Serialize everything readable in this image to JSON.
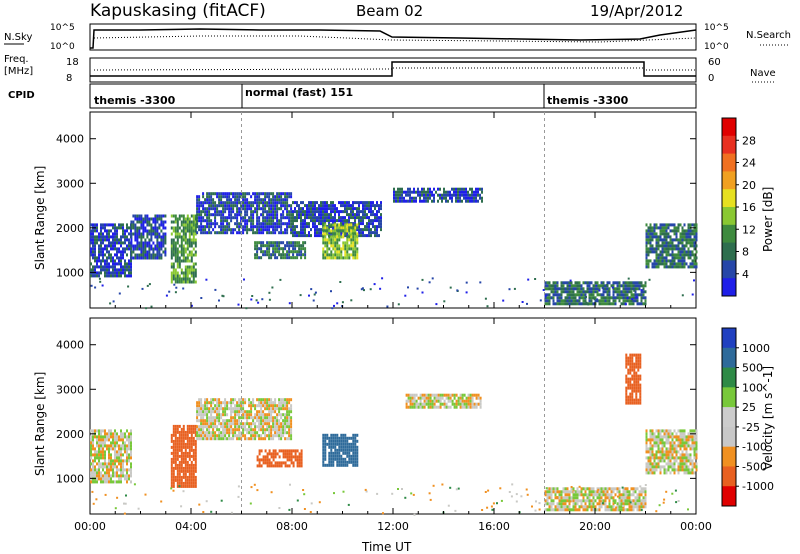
{
  "header": {
    "station": "Kapuskasing (fitACF)",
    "beam": "Beam 02",
    "date": "19/Apr/2012"
  },
  "top_panels": {
    "nsky_label": "N.Sky",
    "nsearch_label": "N.Search",
    "freq_label_1": "Freq.",
    "freq_label_2": "[MHz]",
    "nave_label": "Nave",
    "cpid_label": "CPID",
    "noise_ticks": [
      "10^5",
      "10^0"
    ],
    "freq_ticks": [
      "18",
      "8"
    ],
    "nave_ticks": [
      "60",
      "0"
    ],
    "cpid_segments": [
      {
        "label": "themis -3300",
        "start_h": 0
      },
      {
        "label": "normal (fast) 151",
        "start_h": 6
      },
      {
        "label": "themis -3300",
        "start_h": 18
      }
    ]
  },
  "colors": {
    "power": [
      "#1f1fe8",
      "#2646a8",
      "#2e6e4e",
      "#3e8a3e",
      "#8ac832",
      "#e6e020",
      "#f0a020",
      "#f07020",
      "#e83020",
      "#e00000"
    ],
    "velocity": [
      "#2040c0",
      "#2e6a9a",
      "#2e8a46",
      "#78c83a",
      "#cccccc",
      "#c8c8c8",
      "#f09020",
      "#e86020",
      "#e00000"
    ],
    "vel_gray": "#c9c9c5"
  },
  "chart_data": [
    {
      "type": "heatmap",
      "title": "Power",
      "ylabel": "Slant Range [km]",
      "xlabel": "Time UT",
      "xlim": [
        0,
        24
      ],
      "ylim": [
        200,
        4600
      ],
      "x_ticks": [
        "00:00",
        "04:00",
        "08:00",
        "12:00",
        "16:00",
        "20:00",
        "00:00"
      ],
      "y_ticks": [
        1000,
        2000,
        3000,
        4000
      ],
      "colorbar_label": "Power [dB]",
      "colorbar_ticks": [
        "28",
        "24",
        "20",
        "16",
        "12",
        "8",
        "4"
      ],
      "regions": [
        {
          "t0": 0.0,
          "t1": 1.6,
          "r0": 900,
          "r1": 2100,
          "level": 1
        },
        {
          "t0": 1.6,
          "t1": 3.0,
          "r0": 1300,
          "r1": 2300,
          "level": 1
        },
        {
          "t0": 3.2,
          "t1": 4.2,
          "r0": 800,
          "r1": 2300,
          "level": 3
        },
        {
          "t0": 4.2,
          "t1": 8.0,
          "r0": 1900,
          "r1": 2800,
          "level": 1
        },
        {
          "t0": 6.5,
          "t1": 8.5,
          "r0": 1300,
          "r1": 1700,
          "level": 2
        },
        {
          "t0": 8.0,
          "t1": 11.5,
          "r0": 1800,
          "r1": 2600,
          "level": 1
        },
        {
          "t0": 9.2,
          "t1": 10.6,
          "r0": 1300,
          "r1": 2100,
          "level": 4
        },
        {
          "t0": 12.0,
          "t1": 15.5,
          "r0": 2600,
          "r1": 2900,
          "level": 1
        },
        {
          "t0": 18.0,
          "t1": 22.0,
          "r0": 300,
          "r1": 800,
          "level": 2
        },
        {
          "t0": 22.0,
          "t1": 24.0,
          "r0": 1100,
          "r1": 2100,
          "level": 2
        }
      ]
    },
    {
      "type": "heatmap",
      "title": "Velocity",
      "ylabel": "Slant Range [km]",
      "xlabel": "Time UT",
      "xlim": [
        0,
        24
      ],
      "ylim": [
        200,
        4600
      ],
      "x_ticks": [
        "00:00",
        "04:00",
        "08:00",
        "12:00",
        "16:00",
        "20:00",
        "00:00"
      ],
      "y_ticks": [
        1000,
        2000,
        3000,
        4000
      ],
      "colorbar_label": "Velocity [m s^-1]",
      "colorbar_ticks": [
        "1000",
        "500",
        "100",
        "25",
        "-25",
        "-100",
        "-500",
        "-1000"
      ],
      "regions": [
        {
          "t0": 0.0,
          "t1": 1.6,
          "r0": 900,
          "r1": 2100,
          "v": 0
        },
        {
          "t0": 3.2,
          "t1": 4.2,
          "r0": 800,
          "r1": 2200,
          "v": -300
        },
        {
          "t0": 4.2,
          "t1": 8.0,
          "r0": 1900,
          "r1": 2800,
          "v": 0
        },
        {
          "t0": 6.6,
          "t1": 8.4,
          "r0": 1250,
          "r1": 1650,
          "v": -200
        },
        {
          "t0": 9.2,
          "t1": 10.6,
          "r0": 1300,
          "r1": 2000,
          "v": 400
        },
        {
          "t0": 12.5,
          "t1": 15.5,
          "r0": 2600,
          "r1": 2900,
          "v": 0
        },
        {
          "t0": 18.0,
          "t1": 22.0,
          "r0": 300,
          "r1": 800,
          "v": 0
        },
        {
          "t0": 21.2,
          "t1": 21.8,
          "r0": 2700,
          "r1": 3800,
          "v": -300
        },
        {
          "t0": 22.0,
          "t1": 24.0,
          "r0": 1100,
          "r1": 2100,
          "v": 0
        }
      ]
    }
  ]
}
